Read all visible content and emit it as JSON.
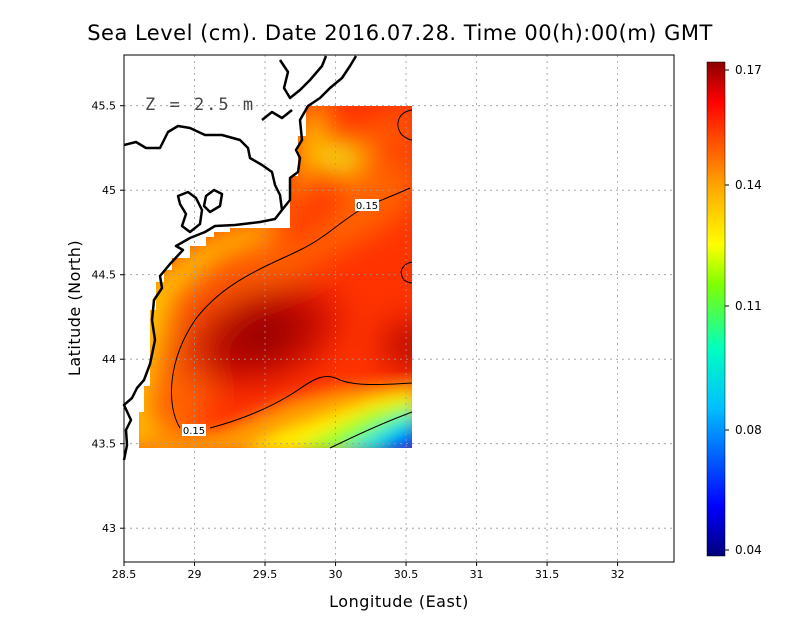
{
  "chart_data": {
    "type": "heatmap",
    "title": "Sea Level (cm). Date 2016.07.28. Time 00(h):00(m) GMT",
    "xlabel": "Longitude (East)",
    "ylabel": "Latitude (North)",
    "annotation": "Z = 2.5 m",
    "xlim": [
      28.5,
      32.4
    ],
    "ylim": [
      42.8,
      45.8
    ],
    "x_ticks": [
      "28.5",
      "29",
      "29.5",
      "30",
      "30.5",
      "31",
      "31.5",
      "32"
    ],
    "y_ticks": [
      "43",
      "43.5",
      "44",
      "44.5",
      "45",
      "45.5"
    ],
    "grid": true,
    "data_extent": {
      "lon": [
        28.63,
        30.55
      ],
      "lat": [
        43.48,
        45.49
      ]
    },
    "contour_level": 0.15,
    "contour_labels": [
      "0.15",
      "0.15"
    ],
    "colorbar": {
      "min": 0.04,
      "max": 0.17,
      "tick_labels": [
        "0.17",
        "0.14",
        "0.11",
        "0.08",
        "0.04"
      ],
      "colors": [
        "#00007a",
        "#0000ff",
        "#00bfff",
        "#00ffc0",
        "#7fff00",
        "#ffff00",
        "#ffa500",
        "#ff4500",
        "#ff0000",
        "#8b0000"
      ]
    },
    "field_samples": [
      {
        "lon": 29.55,
        "lat": 44.2,
        "value": 0.168
      },
      {
        "lon": 30.5,
        "lat": 44.05,
        "value": 0.165
      },
      {
        "lon": 30.0,
        "lat": 44.65,
        "value": 0.158
      },
      {
        "lon": 30.2,
        "lat": 45.2,
        "value": 0.145
      },
      {
        "lon": 29.95,
        "lat": 45.15,
        "value": 0.125
      },
      {
        "lon": 30.45,
        "lat": 45.4,
        "value": 0.15
      },
      {
        "lon": 28.8,
        "lat": 44.3,
        "value": 0.13
      },
      {
        "lon": 29.3,
        "lat": 44.75,
        "value": 0.135
      },
      {
        "lon": 28.75,
        "lat": 43.6,
        "value": 0.13
      },
      {
        "lon": 29.9,
        "lat": 43.62,
        "value": 0.135
      },
      {
        "lon": 30.5,
        "lat": 43.52,
        "value": 0.045
      },
      {
        "lon": 30.3,
        "lat": 43.55,
        "value": 0.08
      }
    ]
  }
}
